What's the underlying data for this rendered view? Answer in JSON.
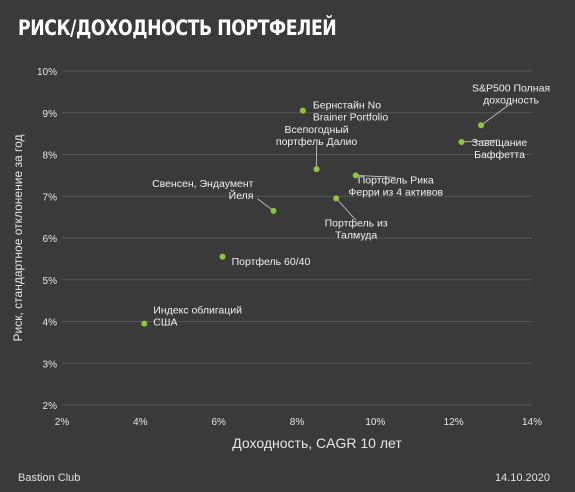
{
  "header": {
    "title": "РИСК/ДОХОДНОСТЬ ПОРТФЕЛЕЙ"
  },
  "footer": {
    "source": "Bastion Club",
    "date": "14.10.2020"
  },
  "colors": {
    "background": "#3a3a3a",
    "point": "#8cc63f",
    "grid": "#555555",
    "text": "#e6e6e6"
  },
  "chart_data": {
    "type": "scatter",
    "title": "РИСК/ДОХОДНОСТЬ ПОРТФЕЛЕЙ",
    "xlabel": "Доходность, CAGR 10 лет",
    "ylabel": "Риск, стандартное отклонение за год",
    "xlim": [
      2,
      14
    ],
    "ylim": [
      2,
      10
    ],
    "xticks": [
      "2%",
      "4%",
      "6%",
      "8%",
      "10%",
      "12%",
      "14%"
    ],
    "yticks": [
      "2%",
      "3%",
      "4%",
      "5%",
      "6%",
      "7%",
      "8%",
      "9%",
      "10%"
    ],
    "grid": "horizontal",
    "points": [
      {
        "label": "Индекс облигаций\nСША",
        "x": 4.1,
        "y": 3.95
      },
      {
        "label": "Портфель 60/40",
        "x": 6.1,
        "y": 5.55
      },
      {
        "label": "Свенсен, Эндаумент\nЙеля",
        "x": 7.4,
        "y": 6.65
      },
      {
        "label": "Бернстайн No\nBrainer Portfolio",
        "x": 8.15,
        "y": 9.05
      },
      {
        "label": "Всепогодный\nпортфель Далио",
        "x": 8.5,
        "y": 7.65
      },
      {
        "label": "Портфель из\nТалмуда",
        "x": 9.0,
        "y": 6.95
      },
      {
        "label": "Портфель Рика\nФерри из 4 активов",
        "x": 9.5,
        "y": 7.5
      },
      {
        "label": "Завещание\nБаффетта",
        "x": 12.2,
        "y": 8.3
      },
      {
        "label": "S&P500 Полная\nдоходность",
        "x": 12.7,
        "y": 8.7
      }
    ]
  }
}
